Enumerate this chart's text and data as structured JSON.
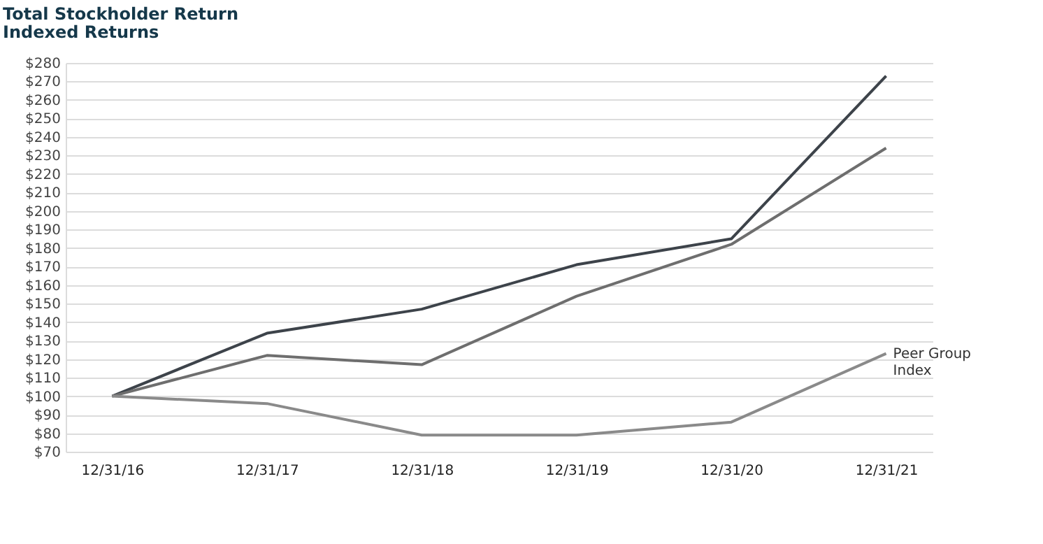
{
  "chart_data": {
    "type": "line",
    "title": "Total Stockholder Return",
    "subtitle": "Indexed Returns",
    "categories": [
      "12/31/16",
      "12/31/17",
      "12/31/18",
      "12/31/19",
      "12/31/20",
      "12/31/21"
    ],
    "series": [
      {
        "color": "#3d434a",
        "values": [
          100,
          134,
          147,
          171,
          185,
          273
        ]
      },
      {
        "color": "#6e6e6e",
        "values": [
          100,
          122,
          117,
          154,
          182,
          234
        ]
      },
      {
        "name": "Peer Group Index",
        "color": "#8a8a8a",
        "values": [
          100,
          96,
          79,
          79,
          86,
          123
        ]
      }
    ],
    "ylim": [
      70,
      280
    ],
    "yticks": [
      {
        "value": 70,
        "label": "$70"
      },
      {
        "value": 80,
        "label": "$80"
      },
      {
        "value": 90,
        "label": "$90"
      },
      {
        "value": 100,
        "label": "$100"
      },
      {
        "value": 110,
        "label": "$110"
      },
      {
        "value": 120,
        "label": "$120"
      },
      {
        "value": 130,
        "label": "$130"
      },
      {
        "value": 140,
        "label": "$140"
      },
      {
        "value": 150,
        "label": "$150"
      },
      {
        "value": 160,
        "label": "$160"
      },
      {
        "value": 170,
        "label": "$170"
      },
      {
        "value": 180,
        "label": "$180"
      },
      {
        "value": 190,
        "label": "$190"
      },
      {
        "value": 200,
        "label": "$200"
      },
      {
        "value": 210,
        "label": "$210"
      },
      {
        "value": 220,
        "label": "$220"
      },
      {
        "value": 230,
        "label": "$230"
      },
      {
        "value": 240,
        "label": "$240"
      },
      {
        "value": 250,
        "label": "$250"
      },
      {
        "value": 260,
        "label": "$260"
      },
      {
        "value": 270,
        "label": "$270"
      },
      {
        "value": 280,
        "label": "$280"
      }
    ],
    "grid": "y",
    "legend": false,
    "marker": "none",
    "line_style": "solid"
  }
}
